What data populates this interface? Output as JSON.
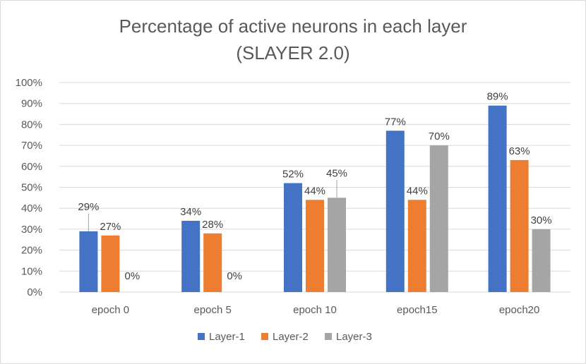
{
  "chart_data": {
    "type": "bar",
    "title": "Percentage of active neurons in each layer",
    "subtitle": "(SLAYER 2.0)",
    "categories": [
      "epoch 0",
      "epoch 5",
      "epoch 10",
      "epoch15",
      "epoch20"
    ],
    "series": [
      {
        "name": "Layer-1",
        "color": "#4472c4",
        "values": [
          29,
          34,
          52,
          77,
          89
        ],
        "labels": [
          "29%",
          "34%",
          "52%",
          "77%",
          "89%"
        ]
      },
      {
        "name": "Layer-2",
        "color": "#ed7d31",
        "values": [
          27,
          28,
          44,
          44,
          63
        ],
        "labels": [
          "27%",
          "28%",
          "44%",
          "44%",
          "63%"
        ]
      },
      {
        "name": "Layer-3",
        "color": "#a5a5a5",
        "values": [
          0,
          0,
          45,
          70,
          30
        ],
        "labels": [
          "0%",
          "0%",
          "45%",
          "70%",
          "30%"
        ]
      }
    ],
    "ylim": [
      0,
      100
    ],
    "yticks": [
      "0%",
      "10%",
      "20%",
      "30%",
      "40%",
      "50%",
      "60%",
      "70%",
      "80%",
      "90%",
      "100%"
    ],
    "grid": true,
    "legend_position": "bottom",
    "gridline_color": "#d9d9d9"
  }
}
